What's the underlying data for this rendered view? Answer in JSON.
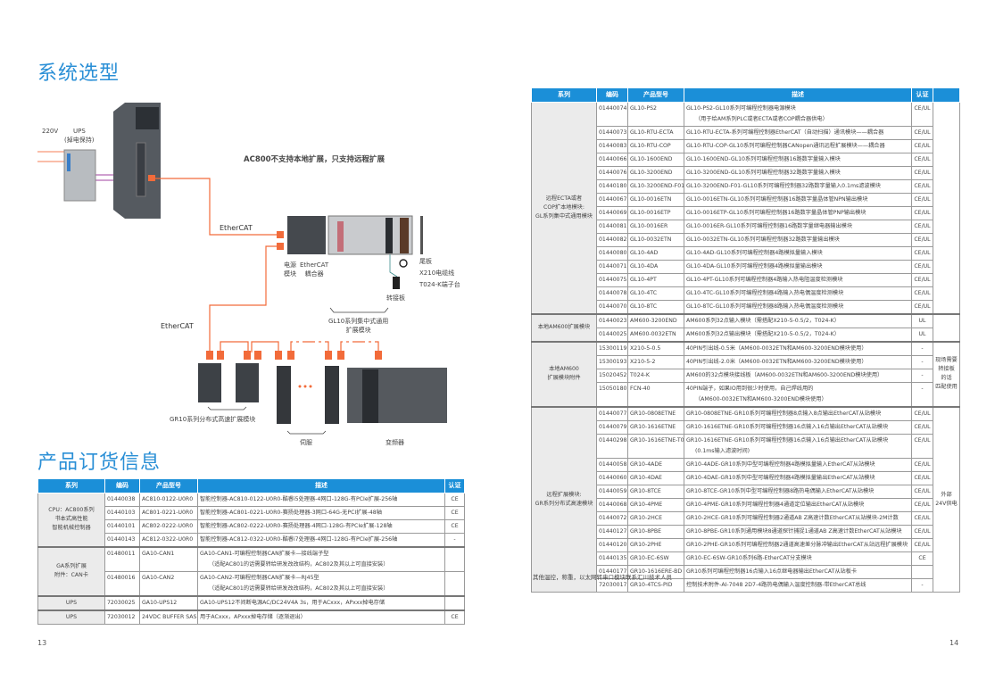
{
  "left_page": {
    "title": "系统选型",
    "order_title": "产品订货信息",
    "page_number": "13",
    "diagram": {
      "headline": "AC800不支持本地扩展，只支持远程扩展",
      "power_label": "220V",
      "ups_label": "UPS",
      "ups_sub": "(掉电保持)",
      "ethercat_logo": "EtherCAT",
      "power_module": "电源\n模块",
      "coupler": "EtherCAT\n耦合器",
      "tail_plate": "尾板",
      "cable": "X210电缆线",
      "terminal": "T024-K端子台",
      "adapter": "转接板",
      "gl10_group": "GL10系列集中式通用\n扩展模块",
      "gr10_group": "GR10系列分布式高速扩展模块",
      "servo": "伺服",
      "inverter": "变频器",
      "accent_color": "#f26b3a"
    },
    "table": {
      "headers": [
        "系列",
        "编码",
        "产品型号",
        "描述",
        "认证"
      ],
      "groups": [
        {
          "series": "CPU：AC800系列\n书本式高性能\n智能机械控制器",
          "rows": [
            {
              "code": "01440038",
              "model": "AC810-0122-U0R0",
              "desc": [
                "智能控制器-AC810-0122-U0R0-酷睿i5处理器-4网口-128G-有PCIe扩展-256轴"
              ],
              "cert": "CE"
            },
            {
              "code": "01440103",
              "model": "AC801-0221-U0R0",
              "desc": [
                "智能控制器-AC801-0221-U0R0-赛扬处理器-3网口-64G-无PCI扩展-48轴"
              ],
              "cert": "CE"
            },
            {
              "code": "01440101",
              "model": "AC802-0222-U0R0",
              "desc": [
                "智能控制器-AC802-0222-U0R0-赛扬处理器-4网口-128G-有PCIe扩展-128轴"
              ],
              "cert": "CE"
            },
            {
              "code": "01440143",
              "model": "AC812-0322-U0R0",
              "desc": [
                "智能控制器-AC812-0322-U0R0-酷睿i7处理器-4网口-128G-有PCIe扩展-256轴"
              ],
              "cert": "-"
            }
          ]
        },
        {
          "series": "GA系列扩展\n附件：CAN卡",
          "rows": [
            {
              "code": "01480011",
              "model": "GA10-CAN1",
              "desc": [
                "GA10-CAN1-可编程控制器CAN扩展卡—接线端子型",
                "（适配AC801的话需要转给研发改改结构，AC802及其以上可直接安装）"
              ],
              "cert": ""
            },
            {
              "code": "01480016",
              "model": "GA10-CAN2",
              "desc": [
                "GA10-CAN2-可编程控制器CAN扩展卡—RJ45型",
                "（适配AC801的话需要转给研发改改结构，AC802及其以上可直接安装）"
              ],
              "cert": ""
            }
          ]
        },
        {
          "series": "UPS",
          "rows": [
            {
              "code": "72030025",
              "model": "GA10-UPS12",
              "desc": [
                "GA10-UPS12不间断电源AC/DC24V4A 3s，用于ACxxx，APxxx掉电存储"
              ],
              "cert": ""
            }
          ]
        },
        {
          "series": "UPS",
          "rows": [
            {
              "code": "72030012",
              "model": "24VDC BUFFER SAS",
              "desc": [
                "用于ACxxx，APxxx掉电存储（逐渐退出）"
              ],
              "cert": "CE"
            }
          ]
        }
      ]
    }
  },
  "right_page": {
    "page_number": "14",
    "footnote": "其他温控，称重，以太网转串口模块联系汇川技术人员",
    "table": {
      "headers": [
        "系列",
        "编码",
        "产品型号",
        "描述",
        "认证",
        ""
      ],
      "groups": [
        {
          "series": "远程ECTA或者\nCOP扩本地模块:\nGL系列集中式通用模块",
          "note": "",
          "rows": [
            {
              "code": "01440074",
              "model": "GL10-PS2",
              "desc": [
                "GL10-PS2-GL10系列可编程控制器电源模块",
                "（用于给AM系列PLC或者ECTA或者COP耦合器供电）"
              ],
              "cert": "CE/UL"
            },
            {
              "code": "01440073",
              "model": "GL10-RTU-ECTA",
              "desc": [
                "GL10-RTU-ECTA-系列可编程控制器EtherCAT（自动扫描）通讯模块——耦合器"
              ],
              "cert": "CE/UL"
            },
            {
              "code": "01440083",
              "model": "GL10-RTU-COP",
              "desc": [
                "GL10-RTU-COP-GL10系列可编程控制器CANopen通讯远程扩展模块——耦合器"
              ],
              "cert": "CE/UL"
            },
            {
              "code": "01440066",
              "model": "GL10-1600END",
              "desc": [
                "GL10-1600END-GL10系列可编程控制器16路数字量输入模块"
              ],
              "cert": "CE/UL"
            },
            {
              "code": "01440076",
              "model": "GL10-3200END",
              "desc": [
                "GL10-3200END-GL10系列可编程控制器32路数字量输入模块"
              ],
              "cert": "CE/UL"
            },
            {
              "code": "01440180",
              "model": "GL10-3200END-F01",
              "desc": [
                "GL10-3200END-F01-GL10系列可编程控制器32路数字量输入0.1ms滤波模块"
              ],
              "cert": "CE/UL"
            },
            {
              "code": "01440067",
              "model": "GL10-0016ETN",
              "desc": [
                "GL10-0016ETN-GL10系列可编程控制器16路数字量晶体管NPN输出模块"
              ],
              "cert": "CE/UL"
            },
            {
              "code": "01440069",
              "model": "GL10-0016ETP",
              "desc": [
                "GL10-0016ETP-GL10系列可编程控制器16路数字量晶体管PNP输出模块"
              ],
              "cert": "CE/UL"
            },
            {
              "code": "01440081",
              "model": "GL10-0016ER",
              "desc": [
                "GL10-0016ER-GL10系列可编程控制器16路数字量继电器输出模块"
              ],
              "cert": "CE/UL"
            },
            {
              "code": "01440082",
              "model": "GL10-0032ETN",
              "desc": [
                "GL10-0032ETN-GL10系列可编程控制器32路数字量输出模块"
              ],
              "cert": "CE/UL"
            },
            {
              "code": "01440080",
              "model": "GL10-4AD",
              "desc": [
                "GL10-4AD-GL10系列可编程控制器4路模拟量输入模块"
              ],
              "cert": "CE/UL"
            },
            {
              "code": "01440071",
              "model": "GL10-4DA",
              "desc": [
                "GL10-4DA-GL10系列可编程控制器4路模拟量输出模块"
              ],
              "cert": "CE/UL"
            },
            {
              "code": "01440075",
              "model": "GL10-4PT",
              "desc": [
                "GL10-4PT-GL10系列可编程控制器4路输入热电阻温度检测模块"
              ],
              "cert": "CE/UL"
            },
            {
              "code": "01440078",
              "model": "GL10-4TC",
              "desc": [
                "GL10-4TC-GL10系列可编程控制器4路输入热电偶温度检测模块"
              ],
              "cert": "CE/UL"
            },
            {
              "code": "01440070",
              "model": "GL10-8TC",
              "desc": [
                "GL10-8TC-GL10系列可编程控制器8路输入热电偶温度检测模块"
              ],
              "cert": "CE/UL"
            }
          ]
        },
        {
          "series": "本地AM600扩展模块",
          "note": "",
          "rows": [
            {
              "code": "01440023",
              "model": "AM600-3200END",
              "desc": [
                "AM600系列32点输入模块（需搭配X210-5-0.5/2，T024-K）"
              ],
              "cert": "UL"
            },
            {
              "code": "01440025",
              "model": "AM600-0032ETN",
              "desc": [
                "AM600系列32点输出模块（需搭配X210-5-0.5/2，T024-K）"
              ],
              "cert": "UL"
            }
          ]
        },
        {
          "series": "本地AM600\n扩展模块附件",
          "note": "现场需要\n转接板\n的话\n匹配使用",
          "rows": [
            {
              "code": "15300119",
              "model": "X210-5-0.5",
              "desc": [
                "40PIN引出线-0.5米（AM600-0032ETN和AM600-3200END模块使用）"
              ],
              "cert": "-"
            },
            {
              "code": "15300193",
              "model": "X210-5-2",
              "desc": [
                "40PIN引出线-2.0米（AM600-0032ETN和AM600-3200END模块使用）"
              ],
              "cert": "-"
            },
            {
              "code": "15020452",
              "model": "T024-K",
              "desc": [
                "AM600的32点模块接线板（AM600-0032ETN和AM600-3200END模块使用）"
              ],
              "cert": "-"
            },
            {
              "code": "15050180",
              "model": "FCN-40",
              "desc": [
                "40PIN端子，如果IO用到很少时使用，自己焊线用的",
                "（AM600-0032ETN和AM600-3200END模块使用）"
              ],
              "cert": "-"
            }
          ]
        },
        {
          "series": "远程扩展模块:\nGR系列分布式高速模块",
          "note": "外部\n24V供电",
          "rows": [
            {
              "code": "01440077",
              "model": "GR10-0808ETNE",
              "desc": [
                "GR10-0808ETNE-GR10系列可编程控制器8点输入8点输出EtherCAT从站模块"
              ],
              "cert": "CE/UL"
            },
            {
              "code": "01440079",
              "model": "GR10-1616ETNE",
              "desc": [
                "GR10-1616ETNE-GR10系列可编程控制器16点输入16点输出EtherCAT从站模块"
              ],
              "cert": "CE/UL"
            },
            {
              "code": "01440298",
              "model": "GR10-1616ETNE-T01",
              "desc": [
                "GR10-1616ETNE-GR10系列可编程控制器16点输入16点输出EtherCAT从站模块",
                "(0.1ms输入滤波时间)"
              ],
              "cert": "CE/UL"
            },
            {
              "code": "01440058",
              "model": "GR10-4ADE",
              "desc": [
                "GR10-4ADE-GR10系列中型可编程控制器4路模拟量输入EtherCAT从站模块"
              ],
              "cert": "CE/UL"
            },
            {
              "code": "01440060",
              "model": "GR10-4DAE",
              "desc": [
                "GR10-4DAE-GR10系列中型可编程控制器4路模拟量输出EtherCAT从站模块"
              ],
              "cert": "CE/UL"
            },
            {
              "code": "01440059",
              "model": "GR10-8TCE",
              "desc": [
                "GR10-8TCE-GR10系列中型可编程控制器8路热电偶输入EtherCAT从站模块"
              ],
              "cert": "CE/UL"
            },
            {
              "code": "01440068",
              "model": "GR10-4PME",
              "desc": [
                "GR10-4PME-GR10系列可编程控制器4通道定位输出EtherCAT从站模块"
              ],
              "cert": "CE/UL"
            },
            {
              "code": "01440072",
              "model": "GR10-2HCE",
              "desc": [
                "GR10-2HCE-GR10系列可编程控制器2通道AB Z高速计数EtherCAT从站模块-2M计数"
              ],
              "cert": "CE/UL"
            },
            {
              "code": "01440127",
              "model": "GR10-8PBE",
              "desc": [
                "GR10-8PBE-GR10系列通用模块8通道探针捕捉1通道AB Z高速计数EtherCAT从站模块"
              ],
              "cert": "CE/UL"
            },
            {
              "code": "01440120",
              "model": "GR10-2PHE",
              "desc": [
                "GR10-2PHE-GR10系列可编程控制器2通道高速差分脉冲输出EtherCAT从站远程扩展模块"
              ],
              "cert": "CE/UL"
            },
            {
              "code": "01440135",
              "model": "GR10-EC-6SW",
              "desc": [
                "GR10-EC-6SW-GR10系列6路-EtherCAT分支模块"
              ],
              "cert": "CE"
            },
            {
              "code": "01440177",
              "model": "GR10-1616ERE-BD",
              "desc": [
                "GR10系列可编程控制器16点输入16点继电器输出EtherCAT从站板卡"
              ],
              "cert": ""
            },
            {
              "code": "72030017",
              "model": "GR10-4TCS-PID",
              "desc": [
                "控制技术附件-AI-7048 2D7-4路热电偶输入温度控制器-带EtherCAT总线"
              ],
              "cert": "-"
            }
          ]
        }
      ]
    }
  }
}
